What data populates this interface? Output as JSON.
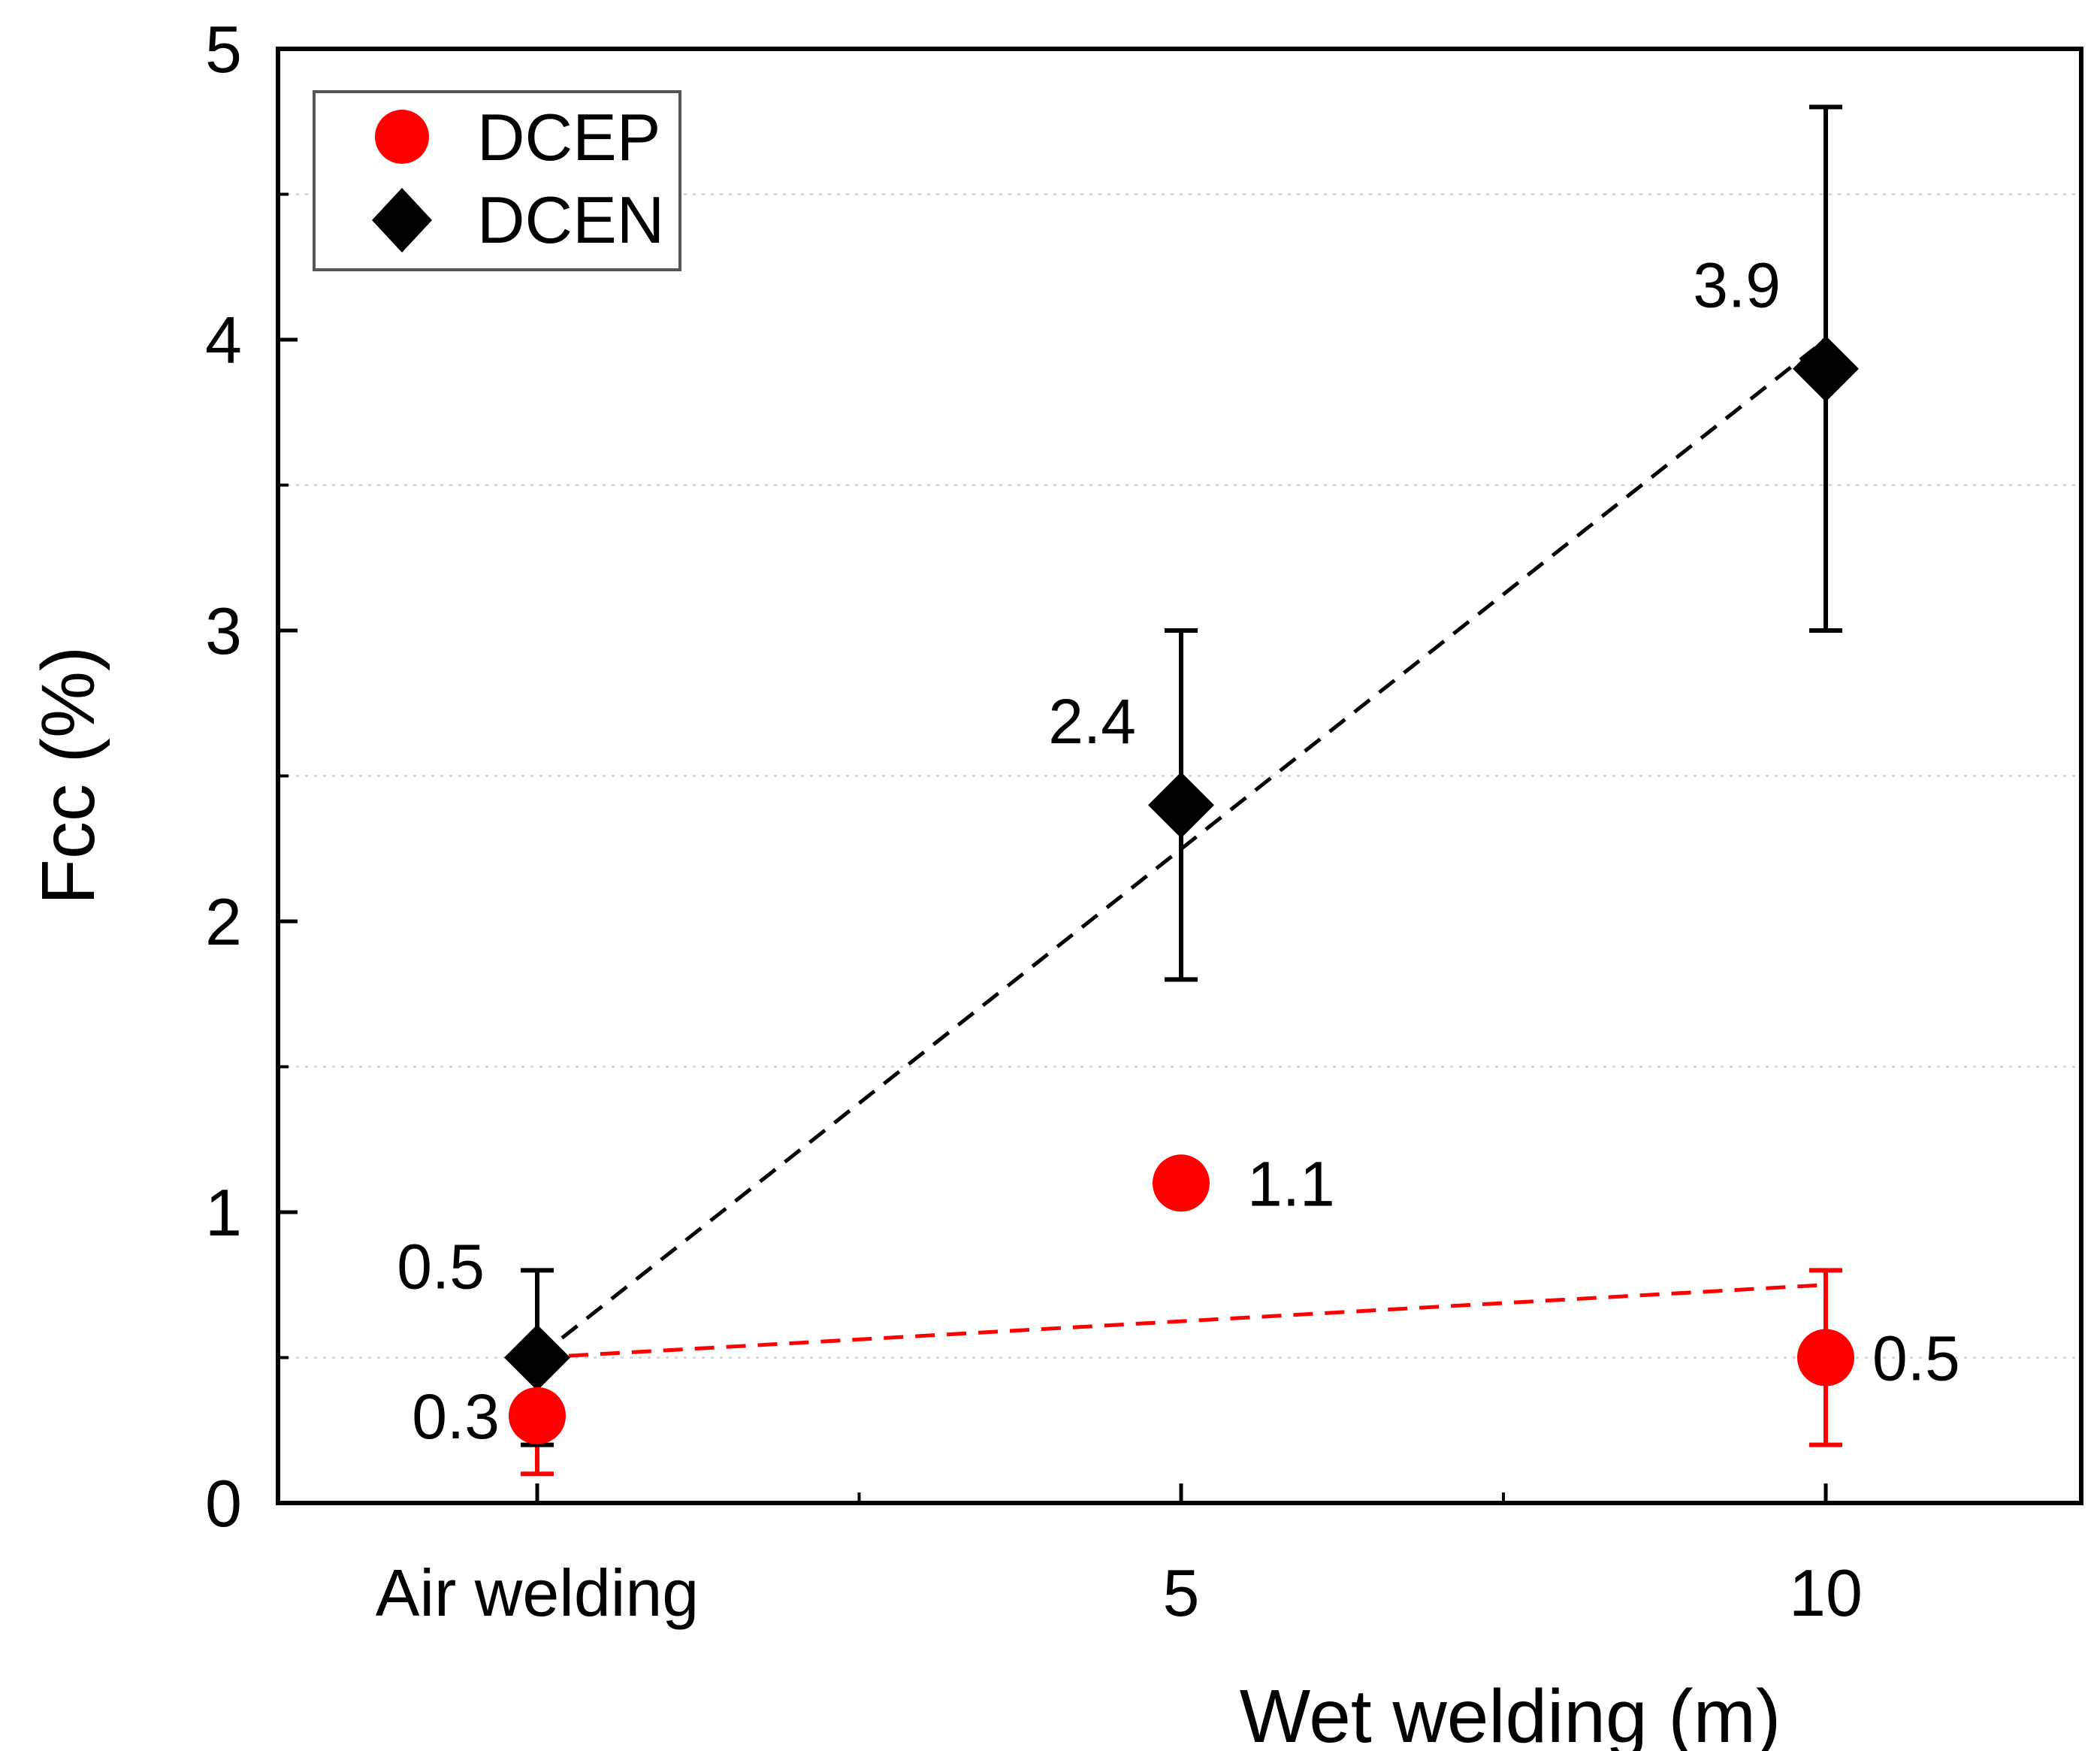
{
  "chart_data": {
    "type": "scatter",
    "title": "",
    "xlabel": "Wet welding (m)",
    "ylabel": "Fcc (%)",
    "x_categories": [
      "Air welding",
      "5",
      "10"
    ],
    "ylim": [
      0,
      5
    ],
    "y_ticks": [
      "0",
      "1",
      "2",
      "3",
      "4",
      "5"
    ],
    "grid": "dotted horizontal at half units",
    "legend_position": "top-left",
    "series": [
      {
        "name": "DCEP",
        "marker": "circle",
        "color": "#ff0000",
        "values": [
          0.3,
          1.1,
          0.5
        ],
        "labels": [
          "0.3",
          "1.1",
          "0.5"
        ],
        "error_low": [
          0.1,
          null,
          0.2
        ],
        "error_high": [
          0.5,
          null,
          0.8
        ],
        "trend_line": [
          0.5,
          0.75
        ]
      },
      {
        "name": "DCEN",
        "marker": "diamond",
        "color": "#000000",
        "values": [
          0.5,
          2.4,
          3.9
        ],
        "labels": [
          "0.5",
          "2.4",
          "3.9"
        ],
        "error_low": [
          0.2,
          1.8,
          3.0
        ],
        "error_high": [
          0.8,
          3.0,
          4.8
        ],
        "trend_line": [
          0.5,
          4.0
        ]
      }
    ]
  }
}
